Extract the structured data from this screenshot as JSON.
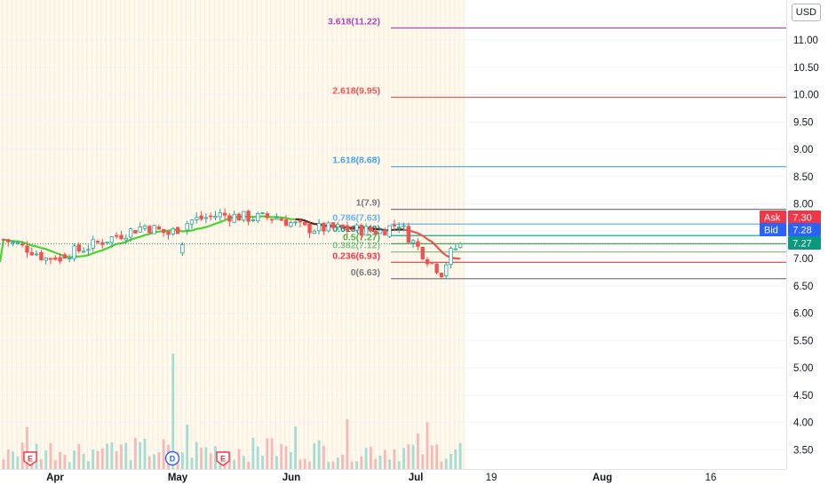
{
  "chart_data": {
    "type": "candlestick",
    "currency": "USD",
    "price_axis": {
      "ticks": [
        "11.00",
        "10.50",
        "10.00",
        "9.50",
        "9.00",
        "8.50",
        "8.00",
        "7.50",
        "7.00",
        "6.50",
        "6.00",
        "5.50",
        "5.00",
        "4.50",
        "4.00",
        "3.50"
      ],
      "range": [
        3.3,
        11.5
      ]
    },
    "time_axis": {
      "labels": [
        {
          "text": "Apr",
          "bold": true
        },
        {
          "text": "May",
          "bold": true
        },
        {
          "text": "Jun",
          "bold": true
        },
        {
          "text": "Jul",
          "bold": true
        },
        {
          "text": "19",
          "bold": false
        },
        {
          "text": "Aug",
          "bold": true
        },
        {
          "text": "16",
          "bold": false
        }
      ]
    },
    "fibonacci": [
      {
        "label": "3.618(11.22)",
        "value": 11.22,
        "color": "#ab47bc"
      },
      {
        "label": "2.618(9.95)",
        "value": 9.95,
        "color": "#ef5350"
      },
      {
        "label": "1.618(8.68)",
        "value": 8.68,
        "color": "#42a5f5"
      },
      {
        "label": "1(7.9)",
        "value": 7.9,
        "color": "#787b86"
      },
      {
        "label": "0.786(7.63)",
        "value": 7.63,
        "color": "#64b5f6"
      },
      {
        "label": "0.618(7.42)",
        "value": 7.42,
        "color": "#089981"
      },
      {
        "label": "0.5(7.27)",
        "value": 7.27,
        "color": "#4caf50"
      },
      {
        "label": "0.382(7.12)",
        "value": 7.12,
        "color": "#81c784"
      },
      {
        "label": "0.236(6.93)",
        "value": 6.93,
        "color": "#f23645"
      },
      {
        "label": "0(6.63)",
        "value": 6.63,
        "color": "#787b86"
      }
    ],
    "quote": {
      "ask_label": "Ask",
      "ask": "7.30",
      "bid_label": "Bid",
      "bid": "7.28",
      "last": "7.27"
    },
    "events": [
      {
        "type": "E",
        "color": "#f23645"
      },
      {
        "type": "D",
        "color": "#2962ff"
      },
      {
        "type": "E",
        "color": "#f23645"
      }
    ],
    "colors": {
      "up": "#26a69a",
      "down": "#ef5350",
      "ma_up": "#4cd137",
      "ma_flat": "#4a2c2c",
      "ma_down": "#ef5350",
      "ask": "#f23645",
      "bid": "#2962ff",
      "last": "#089981"
    }
  }
}
